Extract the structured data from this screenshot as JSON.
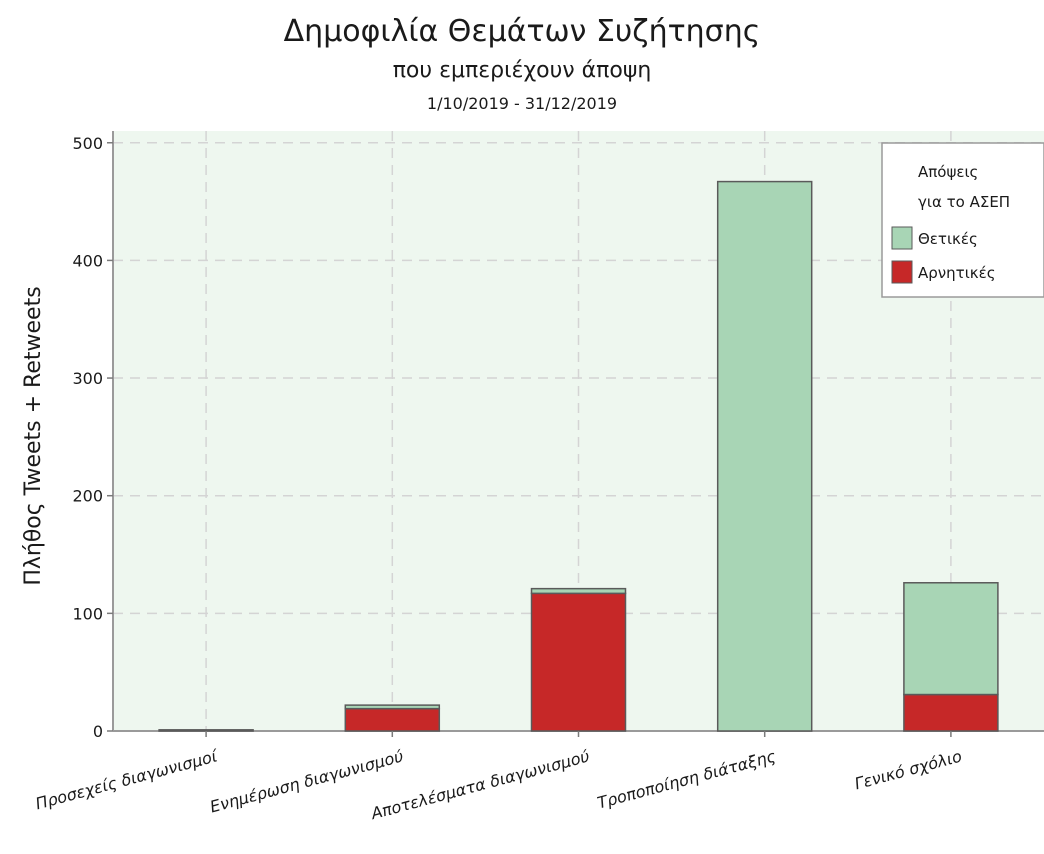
{
  "chart_data": {
    "type": "bar",
    "stacked": true,
    "title": "Δημοφιλία Θεμάτων Συζήτησης",
    "subtitle": "που εμπεριέχουν άποψη",
    "date_range": "1/10/2019 - 31/12/2019",
    "xlabel": "",
    "ylabel": "Πλήθος Tweets + Retweets",
    "ylim": [
      0,
      510
    ],
    "yticks": [
      0,
      100,
      200,
      300,
      400,
      500
    ],
    "grid": true,
    "categories": [
      "Προσεχείς διαγωνισμοί",
      "Ενημέρωση διαγωνισμού",
      "Αποτελέσματα διαγωνισμού",
      "Τροποποίηση διάταξης",
      "Γενικό σχόλιο"
    ],
    "series": [
      {
        "name": "Αρνητικές",
        "color": "#c62828",
        "values": [
          0,
          19,
          117,
          0,
          31
        ]
      },
      {
        "name": "Θετικές",
        "color": "#a8d5b5",
        "values": [
          1,
          3,
          4,
          467,
          95
        ]
      }
    ],
    "legend": {
      "title_line1": "Απόψεις",
      "title_line2": "για το ΑΣΕΠ",
      "placement": "top-right"
    },
    "plot_background": "#eef7ef"
  }
}
